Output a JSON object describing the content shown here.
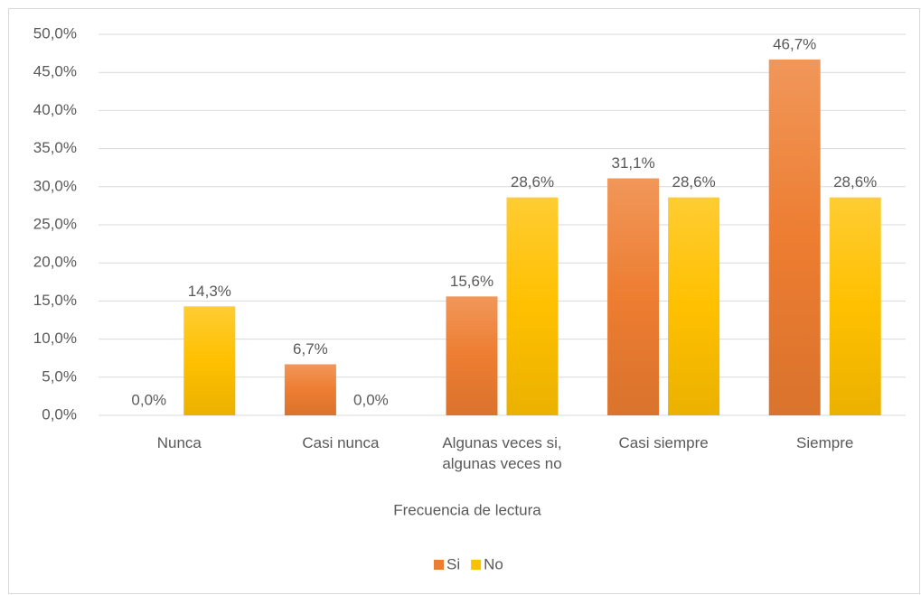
{
  "chart_data": {
    "type": "bar",
    "x_label": "Frecuencia de lectura",
    "categories": [
      "Nunca",
      "Casi nunca",
      "Algunas veces si, algunas veces no",
      "Casi siempre",
      "Siempre"
    ],
    "series": [
      {
        "name": "Si",
        "color": "#ed7d31",
        "values": [
          0,
          6.7,
          15.6,
          31.1,
          46.7
        ],
        "value_labels": [
          "0,0%",
          "6,7%",
          "15,6%",
          "31,1%",
          "46,7%"
        ]
      },
      {
        "name": "No",
        "color": "#ffc000",
        "values": [
          14.3,
          0,
          28.6,
          28.6,
          28.6
        ],
        "value_labels": [
          "14,3%",
          "0,0%",
          "28,6%",
          "28,6%",
          "28,6%"
        ]
      }
    ],
    "ylim": [
      0,
      50
    ],
    "yticks": [
      {
        "value": 0,
        "label": "0,0%"
      },
      {
        "value": 5,
        "label": "5,0%"
      },
      {
        "value": 10,
        "label": "10,0%"
      },
      {
        "value": 15,
        "label": "15,0%"
      },
      {
        "value": 20,
        "label": "20,0%"
      },
      {
        "value": 25,
        "label": "25,0%"
      },
      {
        "value": 30,
        "label": "30,0%"
      },
      {
        "value": 35,
        "label": "35,0%"
      },
      {
        "value": 40,
        "label": "40,0%"
      },
      {
        "value": 45,
        "label": "45,0%"
      },
      {
        "value": 50,
        "label": "50,0%"
      }
    ],
    "grid": true,
    "legend": "bottom"
  }
}
